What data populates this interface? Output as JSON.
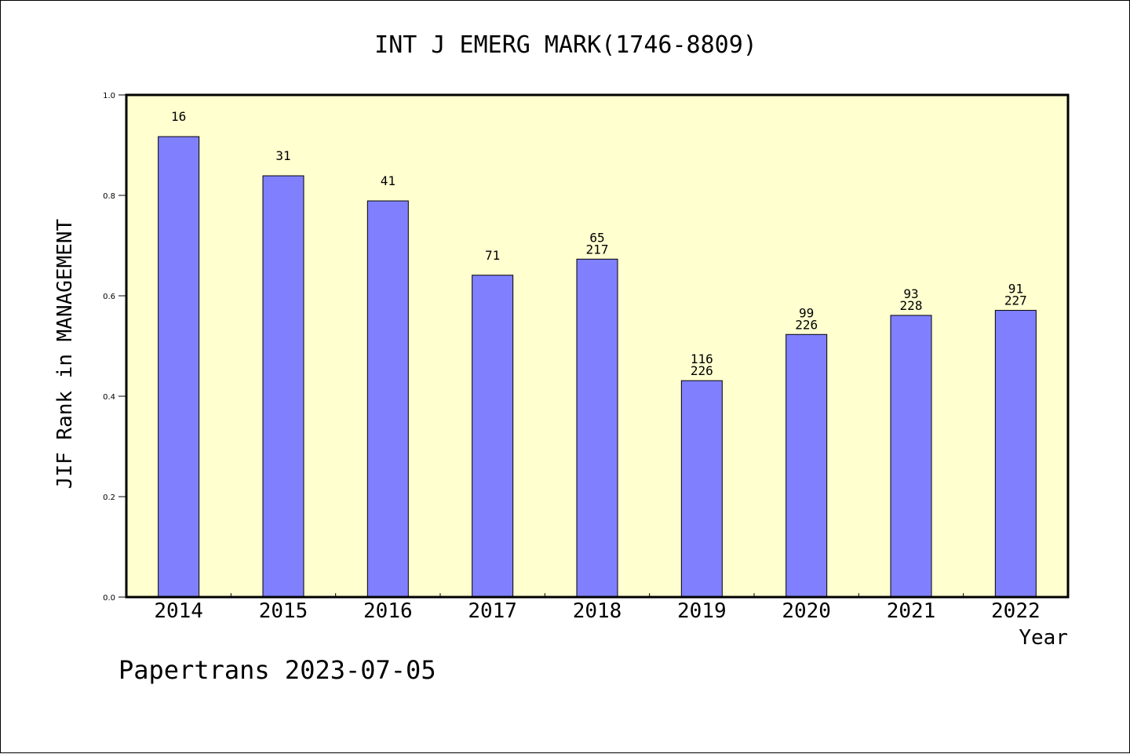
{
  "chart_data": {
    "type": "bar",
    "title": "INT J EMERG MARK(1746-8809)",
    "xlabel": "Year",
    "ylabel": "JIF Rank in MANAGEMENT",
    "ylim": [
      0,
      1
    ],
    "yticks": [
      "0.0",
      "0.2",
      "0.4",
      "0.6",
      "0.8",
      "1.0"
    ],
    "categories": [
      "2014",
      "2015",
      "2016",
      "2017",
      "2018",
      "2019",
      "2020",
      "2021",
      "2022"
    ],
    "values": [
      0.917,
      0.839,
      0.789,
      0.641,
      0.673,
      0.431,
      0.523,
      0.561,
      0.571
    ],
    "labels": [
      [
        "16"
      ],
      [
        "31"
      ],
      [
        "41"
      ],
      [
        "71"
      ],
      [
        "65",
        "217"
      ],
      [
        "116",
        "226"
      ],
      [
        "99",
        "226"
      ],
      [
        "93",
        "228"
      ],
      [
        "91",
        "227"
      ]
    ],
    "colors": {
      "plot_bg": "#ffffd0",
      "bar": "#8080ff"
    },
    "footer": "Papertrans 2023-07-05"
  }
}
